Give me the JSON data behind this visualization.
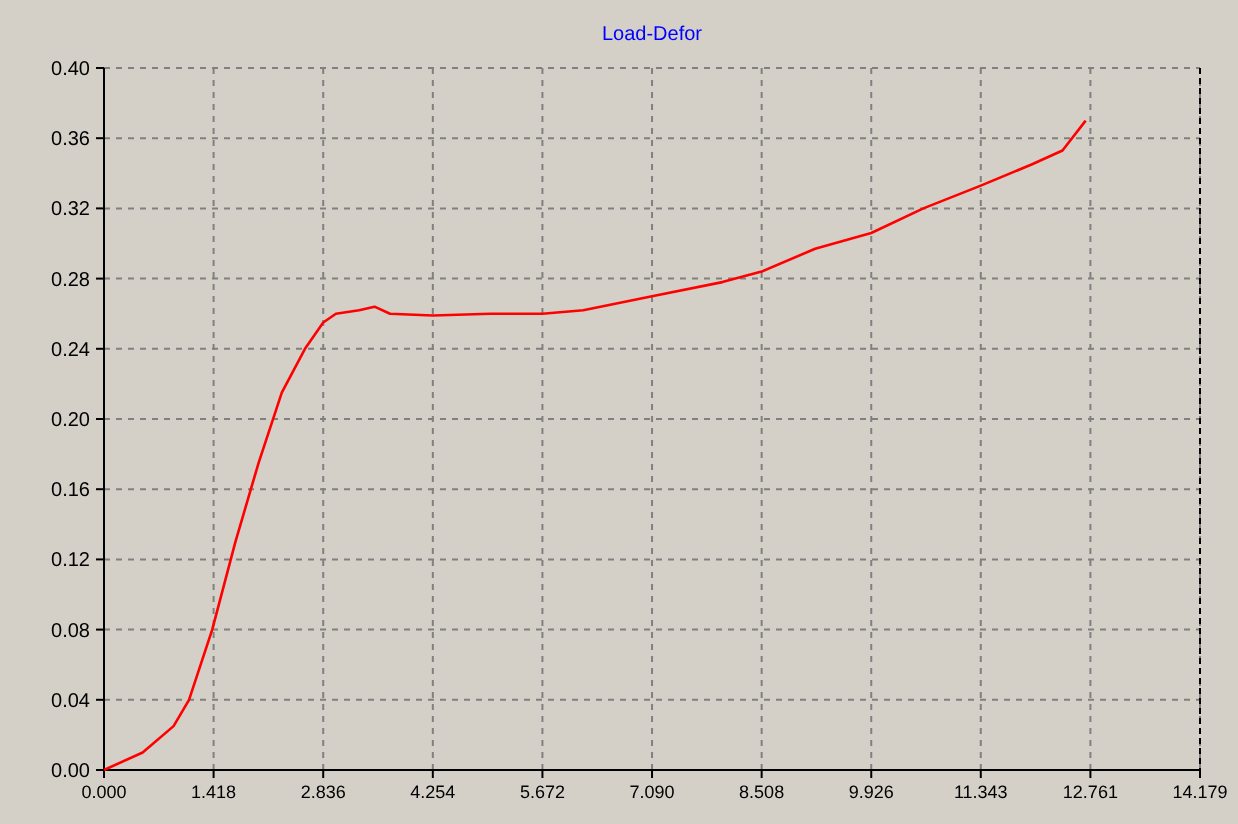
{
  "chart_data": {
    "type": "line",
    "title": "Load-Defor",
    "x": [
      0,
      0.5,
      0.9,
      1.1,
      1.4,
      1.7,
      2.0,
      2.3,
      2.6,
      2.836,
      3.0,
      3.3,
      3.5,
      3.7,
      4.254,
      5.0,
      5.672,
      6.2,
      7.09,
      8.0,
      8.508,
      9.2,
      9.926,
      10.6,
      11.343,
      12.0,
      12.4,
      12.7
    ],
    "series": [
      {
        "color": "#ff0000",
        "values": [
          0,
          0.01,
          0.025,
          0.04,
          0.08,
          0.13,
          0.175,
          0.215,
          0.24,
          0.255,
          0.26,
          0.262,
          0.264,
          0.26,
          0.259,
          0.26,
          0.26,
          0.262,
          0.27,
          0.278,
          0.284,
          0.297,
          0.306,
          0.32,
          0.333,
          0.345,
          0.353,
          0.37
        ]
      }
    ],
    "xlim": [
      0,
      14.179
    ],
    "ylim": [
      0,
      0.4
    ],
    "xticks": [
      {
        "value": 0,
        "label": "0.000"
      },
      {
        "value": 1.418,
        "label": "1.418"
      },
      {
        "value": 2.836,
        "label": "2.836"
      },
      {
        "value": 4.254,
        "label": "4.254"
      },
      {
        "value": 5.672,
        "label": "5.672"
      },
      {
        "value": 7.09,
        "label": "7.090"
      },
      {
        "value": 8.508,
        "label": "8.508"
      },
      {
        "value": 9.926,
        "label": "9.926"
      },
      {
        "value": 11.343,
        "label": "11.343"
      },
      {
        "value": 12.761,
        "label": "12.761"
      },
      {
        "value": 14.179,
        "label": "14.179"
      }
    ],
    "yticks": [
      {
        "value": 0,
        "label": "0.00"
      },
      {
        "value": 0.04,
        "label": "0.04"
      },
      {
        "value": 0.08,
        "label": "0.08"
      },
      {
        "value": 0.12,
        "label": "0.12"
      },
      {
        "value": 0.16,
        "label": "0.16"
      },
      {
        "value": 0.2,
        "label": "0.20"
      },
      {
        "value": 0.24,
        "label": "0.24"
      },
      {
        "value": 0.28,
        "label": "0.28"
      },
      {
        "value": 0.32,
        "label": "0.32"
      },
      {
        "value": 0.36,
        "label": "0.36"
      },
      {
        "value": 0.4,
        "label": "0.40"
      }
    ],
    "grid": true,
    "line_style": "solid",
    "marker": "none"
  }
}
